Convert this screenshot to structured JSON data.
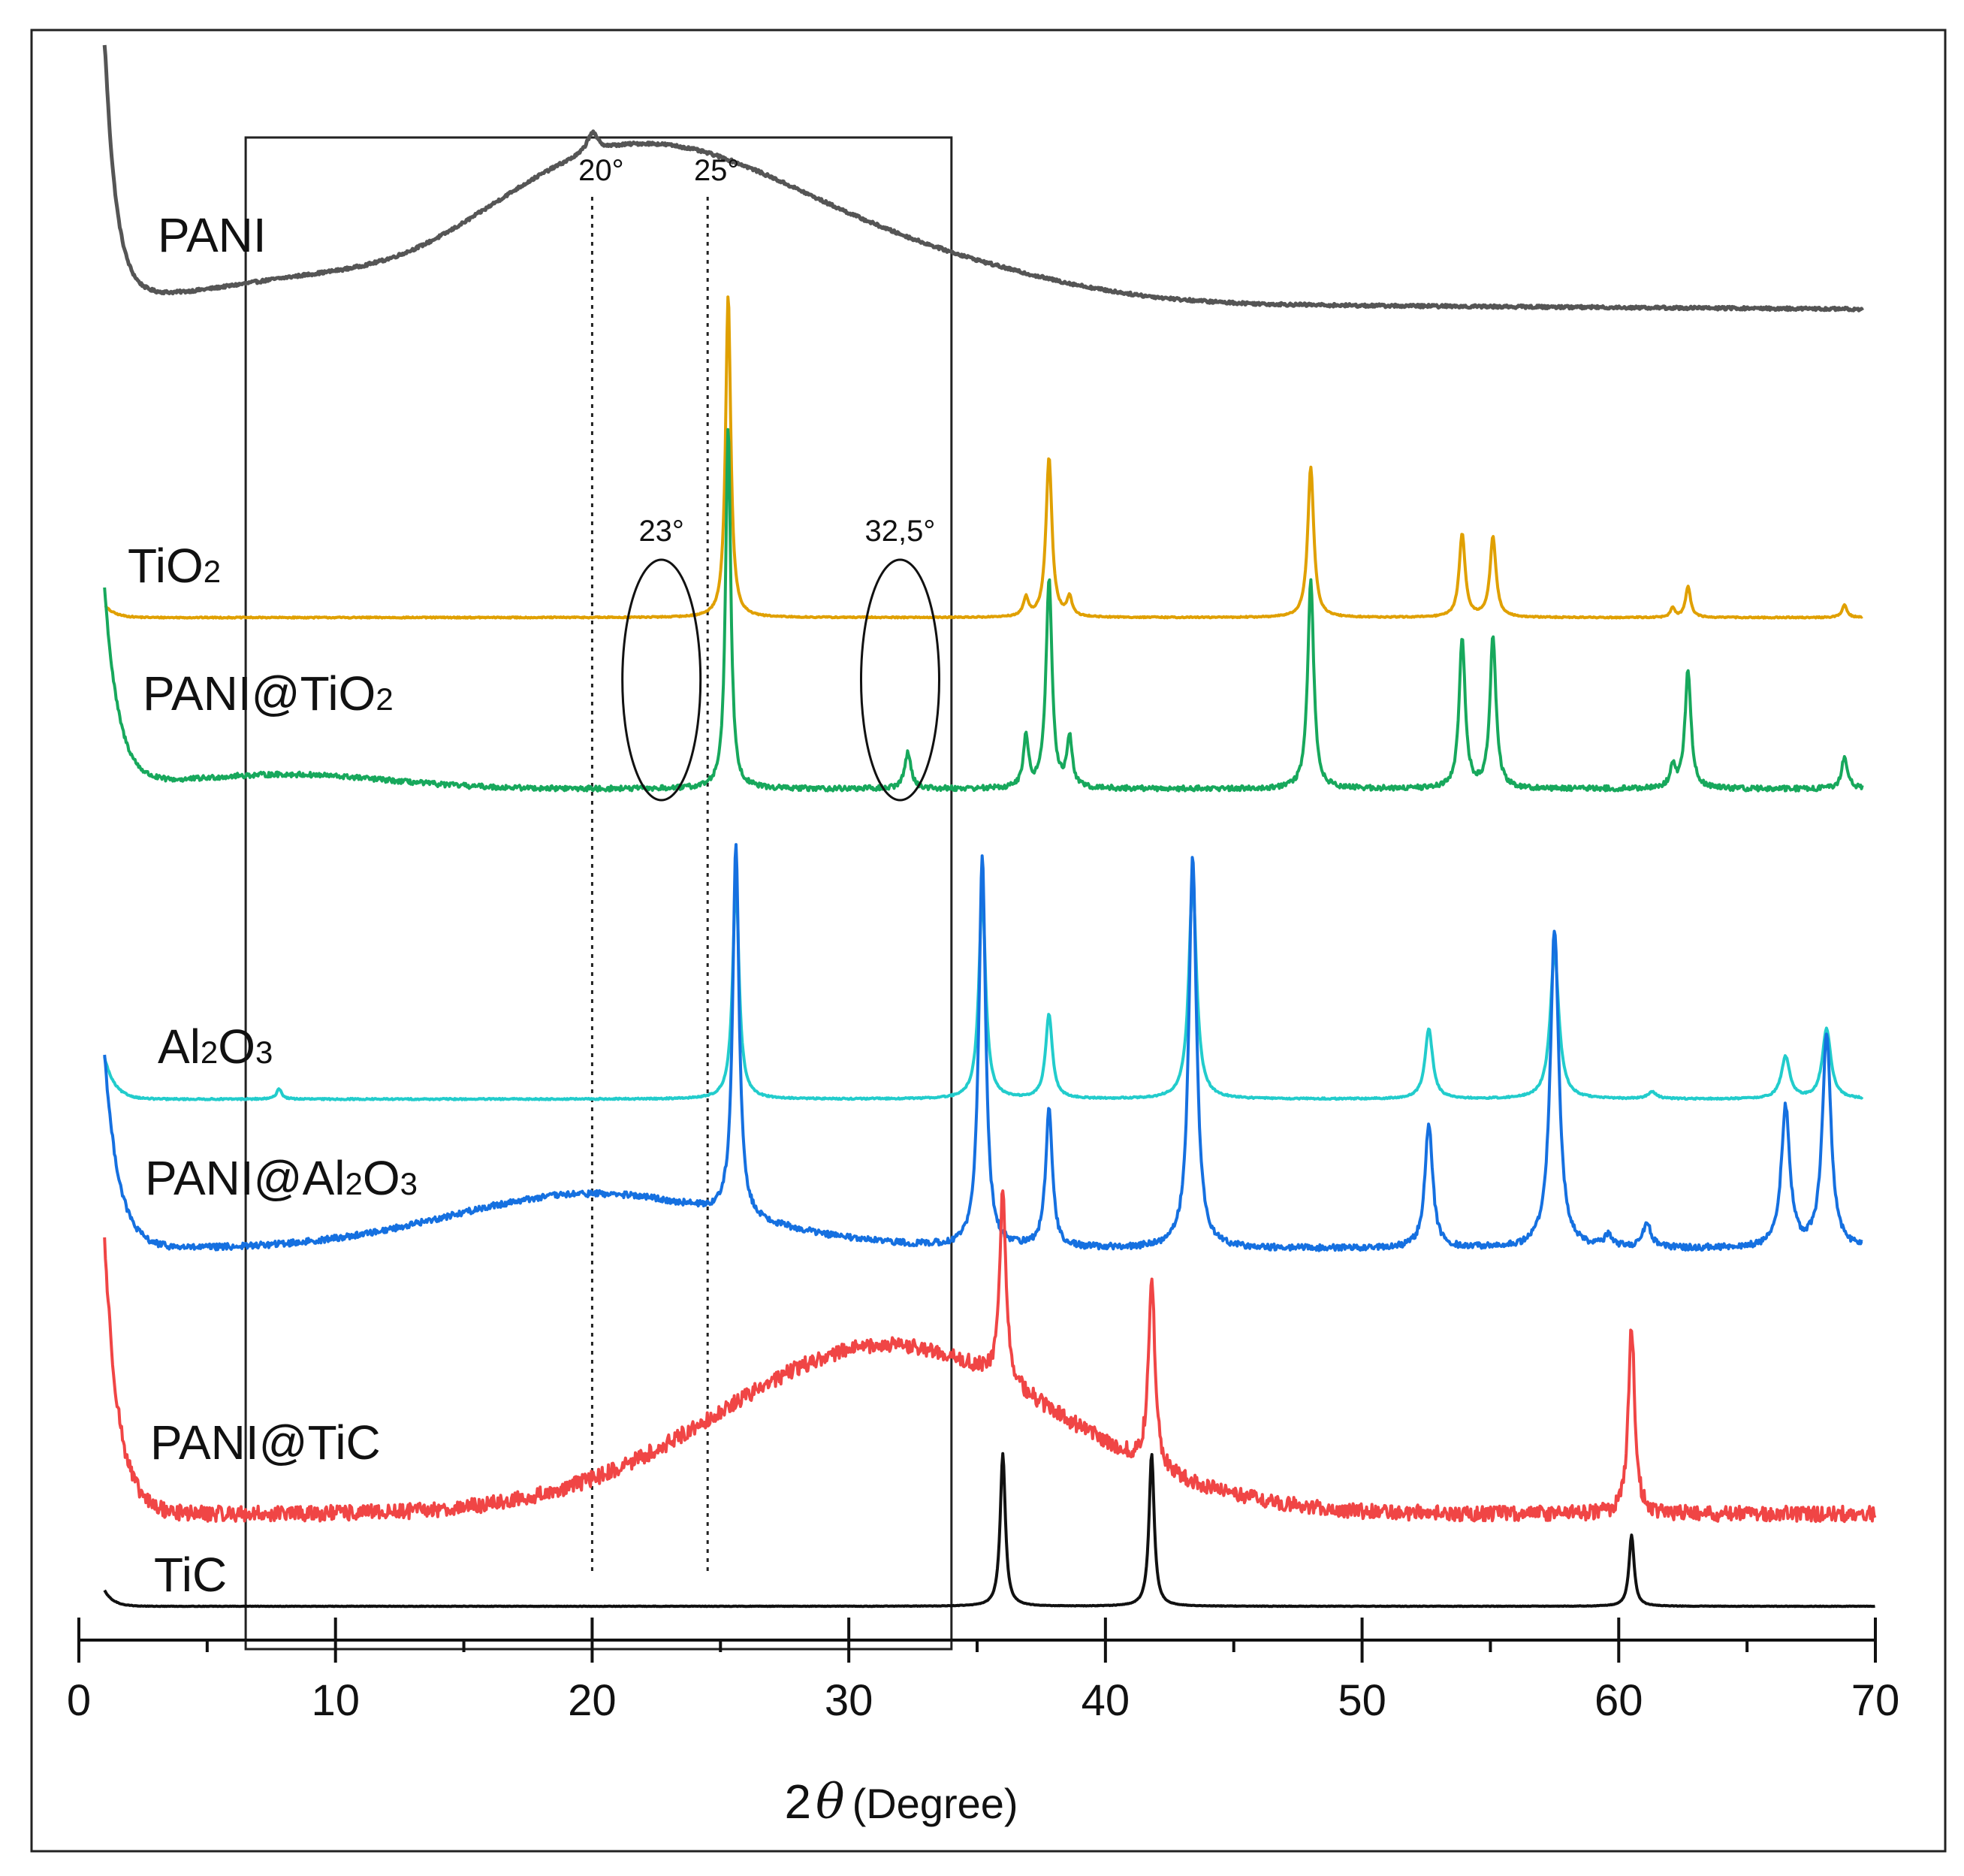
{
  "chart_data": {
    "type": "line",
    "title": "",
    "xlabel": "2θ (Degree)",
    "xlabel_prefix": "2",
    "xlabel_symbol": "θ",
    "xlabel_unit": "(Degree)",
    "ylabel": "",
    "xlim": [
      0,
      70
    ],
    "x_ticks": [
      0,
      10,
      20,
      30,
      40,
      50,
      60,
      70
    ],
    "x_tick_labels": [
      "0",
      "10",
      "20",
      "30",
      "40",
      "50",
      "60",
      "70"
    ],
    "y_axis_shown": false,
    "grid": false,
    "highlight_region": {
      "x": [
        6.5,
        34
      ]
    },
    "reference_lines": [
      {
        "x": 20,
        "label": "20°"
      },
      {
        "x": 24.5,
        "label": "25°"
      }
    ],
    "annotations": [
      {
        "label": "23°",
        "x": 22.7,
        "series": "PANI@TiO2",
        "shape": "ellipse"
      },
      {
        "label": "32,5°",
        "x": 32.0,
        "series": "PANI@TiO2",
        "shape": "ellipse"
      }
    ],
    "series": [
      {
        "name": "PANI",
        "label": "PANI",
        "color": "#555555",
        "x_range": [
          1,
          69.5
        ],
        "baseline": 0.0,
        "noise": 0.012,
        "rise": {
          "height": 1.05,
          "decay": 0.45
        },
        "humps": [
          [
            8.5,
            0.06,
            3
          ],
          [
            19,
            0.38,
            4.6
          ],
          [
            25,
            0.38,
            4.8
          ],
          [
            33,
            0.14,
            5
          ]
        ],
        "peaks": [
          [
            20,
            0.08,
            0.25
          ]
        ],
        "offset": -0.05
      },
      {
        "name": "TiO2",
        "label_base": "TiO",
        "label_sub": "2",
        "color": "#E0A000",
        "x_range": [
          1,
          69.5
        ],
        "baseline": 0.0,
        "noise": 0.004,
        "rise": {
          "height": 0.04,
          "decay": 0.4
        },
        "humps": [],
        "peaks": [
          [
            25.3,
            1.05,
            0.12
          ],
          [
            36.9,
            0.06,
            0.12
          ],
          [
            37.8,
            0.52,
            0.14
          ],
          [
            38.6,
            0.06,
            0.12
          ],
          [
            48.0,
            0.49,
            0.14
          ],
          [
            53.9,
            0.27,
            0.14
          ],
          [
            55.1,
            0.26,
            0.14
          ],
          [
            62.1,
            0.03,
            0.1
          ],
          [
            62.7,
            0.1,
            0.12
          ],
          [
            68.8,
            0.04,
            0.12
          ]
        ]
      },
      {
        "name": "PANI@TiO2",
        "label_base": "PANI@TiO",
        "label_sub": "2",
        "color": "#17A85C",
        "x_range": [
          1,
          69.5
        ],
        "baseline": 0.0,
        "noise": 0.014,
        "rise": {
          "height": 0.55,
          "decay": 0.55
        },
        "humps": [
          [
            8,
            0.04,
            4
          ]
        ],
        "peaks": [
          [
            25.3,
            1.0,
            0.12
          ],
          [
            32.3,
            0.1,
            0.15
          ],
          [
            36.9,
            0.14,
            0.12
          ],
          [
            37.8,
            0.58,
            0.14
          ],
          [
            38.6,
            0.14,
            0.12
          ],
          [
            48.0,
            0.58,
            0.14
          ],
          [
            53.9,
            0.42,
            0.14
          ],
          [
            55.1,
            0.42,
            0.14
          ],
          [
            62.1,
            0.06,
            0.12
          ],
          [
            62.7,
            0.33,
            0.14
          ],
          [
            68.8,
            0.09,
            0.14
          ]
        ]
      },
      {
        "name": "Al2O3",
        "label_base_1": "Al",
        "label_sub_1": "2",
        "label_base_2": "O",
        "label_sub_2": "3",
        "color": "#22CCCC",
        "x_range": [
          1,
          69.5
        ],
        "baseline": 0.0,
        "noise": 0.004,
        "rise": {
          "height": 0.12,
          "decay": 0.4
        },
        "humps": [],
        "peaks": [
          [
            7.8,
            0.03,
            0.12
          ],
          [
            25.6,
            0.62,
            0.15
          ],
          [
            35.2,
            0.58,
            0.16
          ],
          [
            37.8,
            0.24,
            0.16
          ],
          [
            43.4,
            0.62,
            0.18
          ],
          [
            52.6,
            0.2,
            0.18
          ],
          [
            57.5,
            0.42,
            0.2
          ],
          [
            61.3,
            0.02,
            0.2
          ],
          [
            66.5,
            0.12,
            0.2
          ],
          [
            68.1,
            0.2,
            0.2
          ]
        ]
      },
      {
        "name": "PANI@Al2O3",
        "label_base_1": "PANI@Al",
        "label_sub_1": "2",
        "label_base_2": "O",
        "label_sub_2": "3",
        "color": "#1570E0",
        "x_range": [
          1,
          69.5
        ],
        "baseline": 0.0,
        "noise": 0.016,
        "rise": {
          "height": 0.5,
          "decay": 0.55
        },
        "humps": [
          [
            20,
            0.14,
            5.5
          ]
        ],
        "peaks": [
          [
            25.6,
            0.95,
            0.15
          ],
          [
            35.2,
            1.0,
            0.16
          ],
          [
            37.8,
            0.35,
            0.16
          ],
          [
            43.4,
            1.0,
            0.18
          ],
          [
            52.6,
            0.32,
            0.18
          ],
          [
            57.5,
            0.82,
            0.2
          ],
          [
            59.6,
            0.03,
            0.2
          ],
          [
            61.1,
            0.06,
            0.2
          ],
          [
            66.5,
            0.36,
            0.2
          ],
          [
            68.1,
            0.55,
            0.2
          ]
        ]
      },
      {
        "name": "PANI@TiC",
        "label": "PANI@TiC",
        "color": "#F04545",
        "x_range": [
          1,
          70
        ],
        "baseline": 0.0,
        "noise": 0.035,
        "rise": {
          "height": 0.62,
          "decay": 0.55
        },
        "humps": [
          [
            31.5,
            0.38,
            6.5
          ]
        ],
        "peaks": [
          [
            36.0,
            0.43,
            0.15
          ],
          [
            41.8,
            0.43,
            0.15
          ],
          [
            60.5,
            0.42,
            0.15
          ]
        ]
      },
      {
        "name": "TiC",
        "label": "TiC",
        "color": "#111111",
        "x_range": [
          1,
          70
        ],
        "baseline": 0.0,
        "noise": 0.002,
        "rise": {
          "height": 0.06,
          "decay": 0.35
        },
        "humps": [],
        "peaks": [
          [
            36.0,
            0.58,
            0.12
          ],
          [
            41.8,
            0.58,
            0.12
          ],
          [
            60.5,
            0.27,
            0.12
          ]
        ]
      }
    ]
  }
}
